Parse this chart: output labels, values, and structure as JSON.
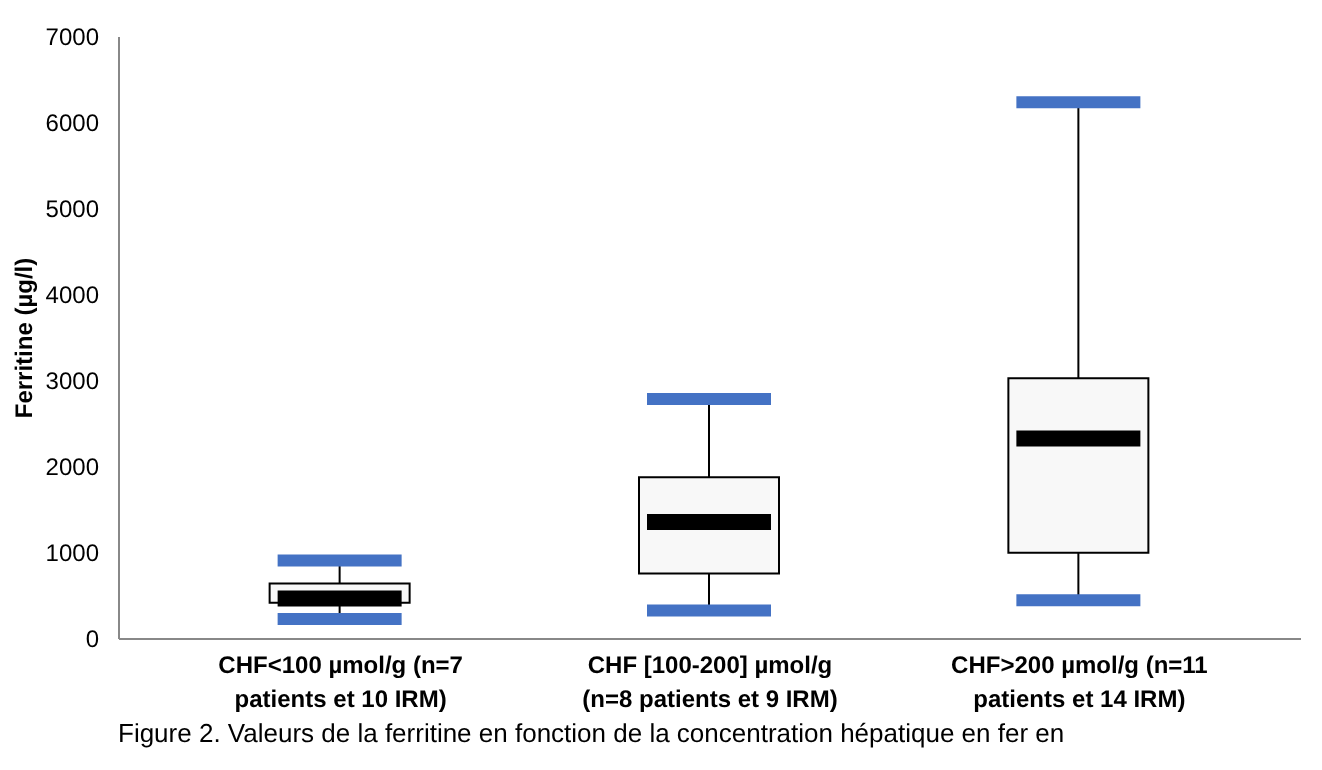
{
  "chart_data": {
    "type": "box",
    "ylabel": "Ferritine (µg/l)",
    "categories": [
      "CHF<100 µmol/g (n=7 patients et 10 IRM)",
      "CHF [100-200] µmol/g (n=8 patients et 9 IRM)",
      "CHF>200 µmol/g (n=11 patients et 14 IRM)"
    ],
    "series": [
      {
        "color": "#f8f8f8",
        "boxes": [
          {
            "low": 220,
            "q1": 410,
            "median": 460,
            "q3": 635,
            "high": 900
          },
          {
            "low": 320,
            "q1": 750,
            "median": 1350,
            "q3": 1870,
            "high": 2780
          },
          {
            "low": 440,
            "q1": 990,
            "median": 2320,
            "q3": 3020,
            "high": 6230
          }
        ]
      }
    ],
    "ylim": [
      0,
      7000
    ],
    "yticks": [
      0,
      1000,
      2000,
      3000,
      4000,
      5000,
      6000,
      7000
    ],
    "grid": false,
    "annotations": [
      "Figure 2. Valeurs de la ferritine en fonction de la concentration hépatique en fer en"
    ]
  }
}
